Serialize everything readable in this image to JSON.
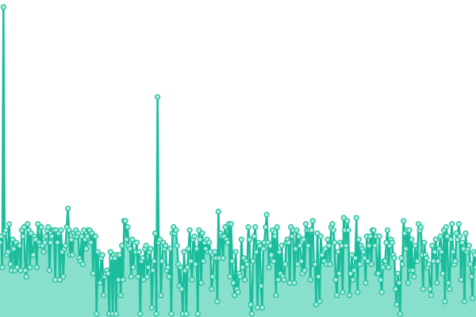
{
  "chart_data": {
    "type": "area",
    "title": "",
    "xlabel": "",
    "ylabel": "",
    "grid": false,
    "legend": "none",
    "colors": {
      "line": "#1abc9c",
      "fill": "#88e0cc",
      "marker_fill": "#a9ecdc"
    },
    "ylim": [
      0,
      100
    ],
    "x_range": [
      0,
      299
    ],
    "series": [
      {
        "values": [
          23,
          25,
          15,
          99,
          26,
          27,
          19,
          20,
          29,
          16,
          14,
          24,
          21,
          14,
          23,
          15,
          22,
          22,
          14,
          27,
          25,
          28,
          14,
          12,
          29,
          27,
          15,
          26,
          19,
          19,
          25,
          24,
          15,
          29,
          23,
          22,
          28,
          22,
          20,
          23,
          25,
          27,
          28,
          14,
          23,
          25,
          27,
          27,
          11,
          27,
          23,
          26,
          11,
          27,
          20,
          12,
          21,
          22,
          28,
          34,
          27,
          19,
          24,
          19,
          26,
          25,
          27,
          25,
          26,
          18,
          17,
          25,
          16,
          27,
          24,
          21,
          25,
          27,
          27,
          23,
          26,
          13,
          25,
          25,
          0,
          20,
          10,
          10,
          18,
          19,
          6,
          12,
          13,
          14,
          13,
          0,
          20,
          18,
          0,
          19,
          18,
          0,
          19,
          11,
          19,
          6,
          22,
          11,
          30,
          30,
          24,
          28,
          22,
          21,
          12,
          24,
          15,
          20,
          20,
          23,
          12,
          20,
          0,
          17,
          18,
          11,
          21,
          22,
          12,
          15,
          20,
          21,
          2,
          14,
          17,
          26,
          0,
          70,
          23,
          24,
          6,
          17,
          23,
          21,
          22,
          14,
          15,
          12,
          21,
          0,
          26,
          28,
          26,
          27,
          22,
          16,
          9,
          15,
          8,
          0,
          20,
          14,
          0,
          15,
          21,
          27,
          17,
          11,
          24,
          25,
          16,
          21,
          0,
          27,
          24,
          10,
          26,
          17,
          23,
          21,
          24,
          20,
          23,
          20,
          8,
          12,
          18,
          20,
          18,
          4,
          33,
          18,
          26,
          25,
          18,
          25,
          28,
          24,
          23,
          29,
          12,
          29,
          17,
          10,
          6,
          20,
          8,
          7,
          13,
          12,
          24,
          15,
          18,
          11,
          17,
          16,
          28,
          24,
          3,
          0,
          17,
          25,
          28,
          20,
          2,
          23,
          22,
          9,
          2,
          21,
          23,
          28,
          32,
          23,
          15,
          22,
          19,
          27,
          17,
          25,
          6,
          28,
          11,
          20,
          13,
          22,
          12,
          11,
          16,
          23,
          24,
          23,
          10,
          28,
          25,
          27,
          10,
          21,
          27,
          16,
          25,
          22,
          17,
          13,
          24,
          14,
          29,
          27,
          22,
          27,
          11,
          27,
          30,
          16,
          16,
          3,
          26,
          12,
          4,
          25,
          19,
          17,
          17,
          21,
          16,
          24,
          22,
          16,
          28,
          29,
          27,
          23,
          11,
          6,
          20,
          13,
          23,
          22,
          7,
          31,
          27,
          22,
          30,
          27,
          6,
          13,
          19,
          11,
          14,
          18,
          31,
          7,
          24,
          16,
          22,
          21,
          20,
          18,
          10,
          25,
          17,
          22,
          25,
          16,
          27,
          27,
          22,
          25,
          13,
          13,
          25,
          11,
          7,
          15,
          17,
          17,
          23,
          27,
          15,
          22,
          24,
          23,
          19,
          18,
          8,
          3,
          13,
          10,
          0,
          18,
          16,
          30,
          26,
          21,
          27,
          10,
          27,
          14,
          24,
          14,
          12,
          22,
          17,
          17,
          29,
          27,
          28,
          19,
          8,
          23,
          19,
          18,
          15,
          16,
          8,
          6,
          22,
          17,
          20,
          24,
          10,
          17,
          21,
          25,
          20,
          13,
          27,
          4,
          28,
          25,
          10,
          8,
          24,
          29,
          20,
          16,
          17,
          26,
          24,
          29,
          25,
          11,
          23,
          21,
          4,
          26,
          20,
          21,
          22,
          16,
          12,
          5,
          20,
          19,
          15
        ]
      }
    ]
  }
}
